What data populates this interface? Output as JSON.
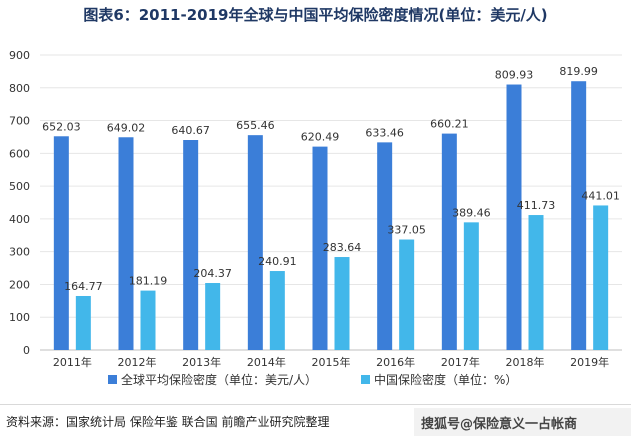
{
  "colors": {
    "series1": "#3b7ed8",
    "series2": "#42b7ea",
    "grid": "#e6e6e6",
    "title": "#1f3864"
  },
  "footer": {
    "source": "资料来源：国家统计局 保险年鉴 联合国 前瞻产业研究院整理",
    "credit": "搜狐号@保险意义一占帐商"
  },
  "chart_data": {
    "type": "bar",
    "title": "图表6：2011-2019年全球与中国平均保险密度情况(单位：美元/人)",
    "categories": [
      "2011年",
      "2012年",
      "2013年",
      "2014年",
      "2015年",
      "2016年",
      "2017年",
      "2018年",
      "2019年"
    ],
    "series": [
      {
        "name": "全球平均保险密度（单位：美元/人）",
        "values": [
          652.03,
          649.02,
          640.67,
          655.46,
          620.49,
          633.46,
          660.21,
          809.93,
          819.99
        ]
      },
      {
        "name": "中国保险密度（单位：%）",
        "values": [
          164.77,
          181.19,
          204.37,
          240.91,
          283.64,
          337.05,
          389.46,
          411.73,
          441.01
        ]
      }
    ],
    "ylim": [
      0,
      900
    ],
    "yticks": [
      0,
      100,
      200,
      300,
      400,
      500,
      600,
      700,
      800,
      900
    ],
    "grid": true,
    "legend": "bottom"
  }
}
